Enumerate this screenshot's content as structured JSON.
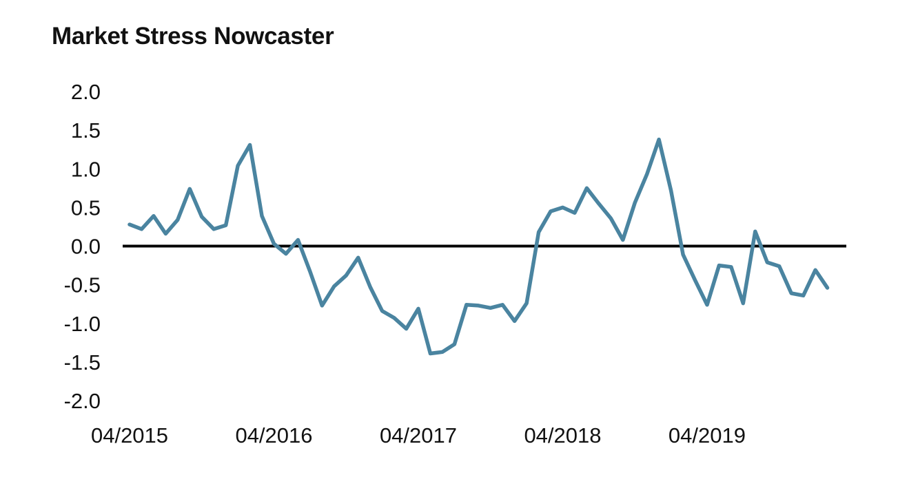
{
  "chart_data": {
    "type": "line",
    "title": "Market Stress Nowcaster",
    "xlabel": "",
    "ylabel": "",
    "ylim": [
      -2.0,
      2.0
    ],
    "y_ticks": [
      "2.0",
      "1.5",
      "1.0",
      "0.5",
      "0.0",
      "-0.5",
      "-1.0",
      "-1.5",
      "-2.0"
    ],
    "x_tick_labels": [
      "04/2015",
      "04/2016",
      "04/2017",
      "04/2018",
      "04/2019"
    ],
    "x": [
      "04/2015",
      "05/2015",
      "06/2015",
      "07/2015",
      "08/2015",
      "09/2015",
      "10/2015",
      "11/2015",
      "12/2015",
      "01/2016",
      "02/2016",
      "03/2016",
      "04/2016",
      "05/2016",
      "06/2016",
      "07/2016",
      "08/2016",
      "09/2016",
      "10/2016",
      "11/2016",
      "12/2016",
      "01/2017",
      "02/2017",
      "03/2017",
      "04/2017",
      "05/2017",
      "06/2017",
      "07/2017",
      "08/2017",
      "09/2017",
      "10/2017",
      "11/2017",
      "12/2017",
      "01/2018",
      "02/2018",
      "03/2018",
      "04/2018",
      "05/2018",
      "06/2018",
      "07/2018",
      "08/2018",
      "09/2018",
      "10/2018",
      "11/2018",
      "12/2018",
      "01/2019",
      "02/2019",
      "03/2019",
      "04/2019",
      "05/2019",
      "06/2019",
      "07/2019",
      "08/2019",
      "09/2019",
      "10/2019",
      "11/2019",
      "12/2019",
      "01/2020",
      "02/2020",
      "03/2020"
    ],
    "series": [
      {
        "color": "#4A84A0",
        "values": [
          0.28,
          0.22,
          0.39,
          0.16,
          0.34,
          0.74,
          0.38,
          0.22,
          0.27,
          1.04,
          1.31,
          0.39,
          0.03,
          -0.1,
          0.08,
          -0.33,
          -0.77,
          -0.52,
          -0.38,
          -0.15,
          -0.53,
          -0.84,
          -0.93,
          -1.07,
          -0.81,
          -1.39,
          -1.37,
          -1.27,
          -0.76,
          -0.77,
          -0.8,
          -0.76,
          -0.97,
          -0.74,
          0.18,
          0.45,
          0.5,
          0.43,
          0.75,
          0.55,
          0.36,
          0.08,
          0.56,
          0.93,
          1.38,
          0.72,
          -0.11,
          -0.44,
          -0.76,
          -0.25,
          -0.27,
          -0.74,
          0.19,
          -0.21,
          -0.26,
          -0.61,
          -0.64,
          -0.31,
          -0.54,
          null
        ]
      }
    ],
    "zero_line_color": "#000000",
    "grid": false,
    "legend": "none"
  }
}
